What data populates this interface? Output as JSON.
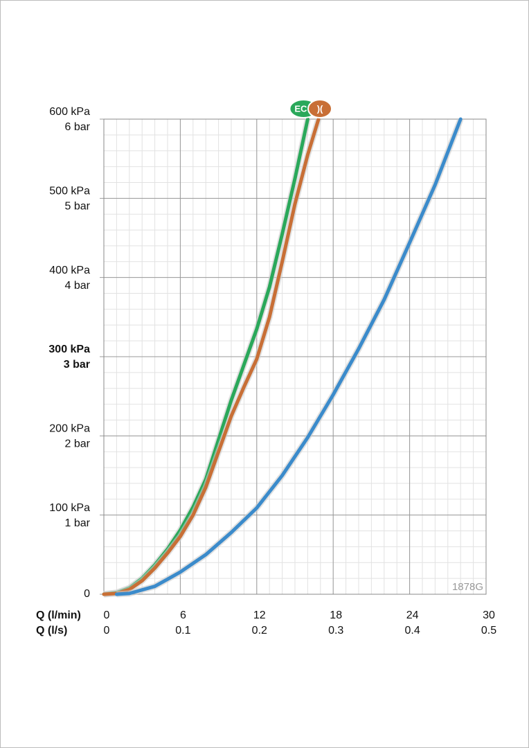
{
  "chart_data": {
    "type": "line",
    "xlabel": "Q (l/min)",
    "x2label": "Q (l/s)",
    "xlim": [
      0,
      30
    ],
    "xticks": [
      0,
      6,
      12,
      18,
      24,
      30
    ],
    "x2ticks": [
      0,
      {
        "value": 6,
        "label": "0.1"
      },
      {
        "value": 12,
        "label": "0.2"
      },
      {
        "value": 18,
        "label": "0.3"
      },
      {
        "value": 24,
        "label": "0.4"
      },
      {
        "value": 30,
        "label": "0.5"
      }
    ],
    "ylim": [
      0,
      600
    ],
    "yticks": [
      0,
      {
        "value": 100,
        "label": "100 kPa"
      },
      {
        "value": 200,
        "label": "200 kPa"
      },
      {
        "value": 300,
        "label": "300 kPa"
      },
      {
        "value": 400,
        "label": "400 kPa"
      },
      {
        "value": 500,
        "label": "500 kPa"
      },
      {
        "value": 600,
        "label": "600 kPa"
      }
    ],
    "ybarticks": [
      {
        "value": 100,
        "label": "1 bar"
      },
      {
        "value": 200,
        "label": "2 bar"
      },
      {
        "value": 300,
        "label": "3 bar"
      },
      {
        "value": 400,
        "label": "4 bar"
      },
      {
        "value": 500,
        "label": "5 bar"
      },
      {
        "value": 600,
        "label": "6 bar"
      }
    ],
    "bold_ytick": 300,
    "grid": true,
    "minor_x": 1,
    "minor_y": 20,
    "watermark": "1878G",
    "series": [
      {
        "name": "EC",
        "color": "#2aa85a",
        "x": [
          0,
          1,
          2,
          3,
          4,
          5,
          6,
          7,
          8,
          9,
          10,
          11,
          12,
          13,
          14,
          15,
          16
        ],
        "values": [
          0,
          2,
          8,
          20,
          37,
          57,
          81,
          110,
          145,
          195,
          245,
          290,
          335,
          388,
          455,
          525,
          600
        ]
      },
      {
        "name": ")(",
        "color": "#c86f36",
        "x": [
          0,
          1,
          2,
          3,
          4,
          5,
          6,
          7,
          8,
          9,
          10,
          11,
          12,
          13,
          14,
          15,
          16,
          16.85
        ],
        "values": [
          0,
          1,
          6,
          17,
          33,
          52,
          73,
          100,
          135,
          180,
          225,
          262,
          297,
          350,
          420,
          493,
          555,
          600
        ]
      },
      {
        "color": "#3b8bcb",
        "x": [
          1,
          2,
          4,
          6,
          8,
          10,
          12,
          14,
          16,
          18,
          20,
          22,
          24,
          26,
          28
        ],
        "values": [
          0,
          1,
          10,
          28,
          50,
          78,
          109,
          150,
          198,
          252,
          310,
          372,
          444,
          517,
          600
        ]
      }
    ]
  }
}
